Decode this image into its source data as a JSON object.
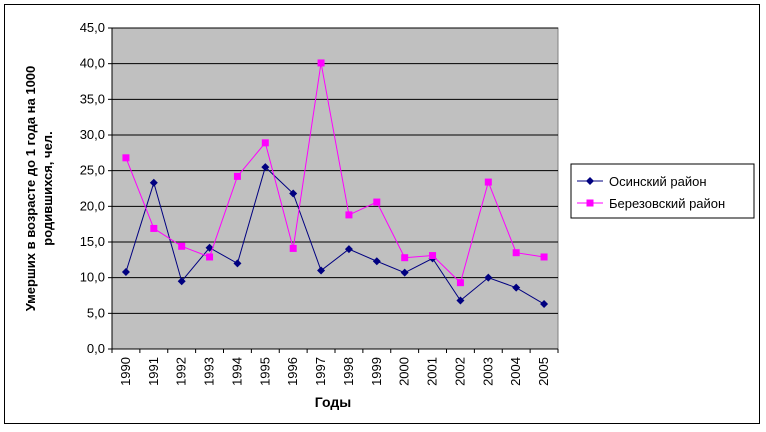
{
  "chart_data": {
    "type": "line",
    "xlabel": "Годы",
    "ylabel": "Умерших в возрасте до 1 года на 1000 родившихся, чел.",
    "categories": [
      "1990",
      "1991",
      "1992",
      "1993",
      "1994",
      "1995",
      "1996",
      "1997",
      "1998",
      "1999",
      "2000",
      "2001",
      "2002",
      "2003",
      "2004",
      "2005"
    ],
    "y_ticks": [
      "0,0",
      "5,0",
      "10,0",
      "15,0",
      "20,0",
      "25,0",
      "30,0",
      "35,0",
      "40,0",
      "45,0"
    ],
    "ylim": [
      0,
      45
    ],
    "grid": true,
    "legend": "right",
    "series": [
      {
        "name": "Осинский район",
        "color": "#000080",
        "marker": "diamond",
        "values": [
          10.8,
          23.3,
          9.5,
          14.2,
          12.0,
          25.5,
          21.8,
          11.0,
          14.0,
          12.3,
          10.7,
          12.7,
          6.8,
          10.0,
          8.6,
          6.3
        ]
      },
      {
        "name": "Березовский район",
        "color": "#FF00FF",
        "marker": "square",
        "values": [
          26.8,
          16.9,
          14.4,
          12.9,
          24.2,
          28.9,
          14.1,
          40.1,
          18.8,
          20.6,
          12.8,
          13.1,
          9.3,
          23.4,
          13.5,
          12.9
        ]
      }
    ],
    "plot_background": "#C0C0C0"
  }
}
